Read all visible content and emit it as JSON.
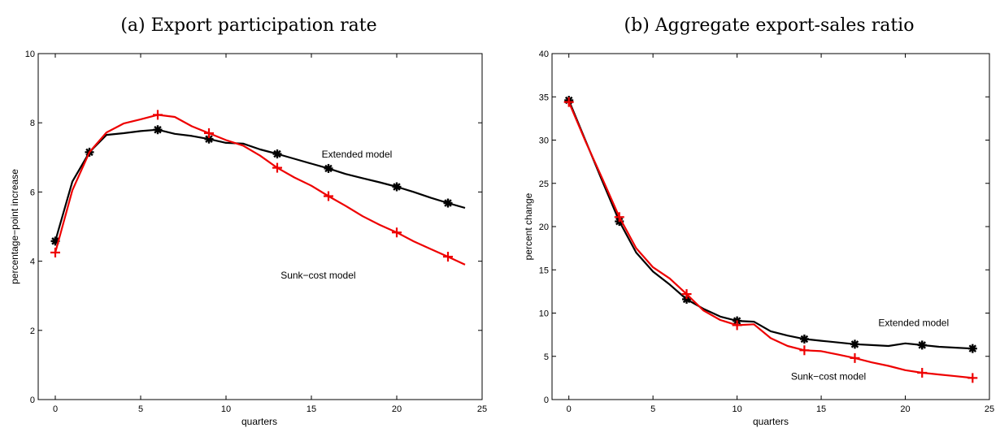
{
  "chart_data": [
    {
      "type": "line",
      "title": "(a) Export participation rate",
      "xlabel": "quarters",
      "ylabel": "percentage−point increase",
      "xlim": [
        -1,
        25
      ],
      "ylim": [
        0,
        10
      ],
      "xticks": [
        "0",
        "5",
        "10",
        "15",
        "20",
        "25"
      ],
      "yticks": [
        "0",
        "2",
        "4",
        "6",
        "8",
        "10"
      ],
      "grid": false,
      "series": [
        {
          "key": "extended",
          "color": "#000000",
          "marker": "asterisk",
          "x": [
            0,
            1,
            2,
            3,
            4,
            5,
            6,
            7,
            8,
            9,
            10,
            11,
            12,
            13,
            14,
            15,
            16,
            17,
            18,
            19,
            20,
            21,
            22,
            23,
            24
          ],
          "values": [
            4.58,
            6.3,
            7.15,
            7.65,
            7.7,
            7.76,
            7.8,
            7.68,
            7.62,
            7.53,
            7.42,
            7.4,
            7.23,
            7.1,
            6.96,
            6.82,
            6.68,
            6.52,
            6.4,
            6.28,
            6.15,
            6.0,
            5.83,
            5.68,
            5.54
          ],
          "marker_x": [
            0,
            2,
            6,
            9,
            13,
            16,
            20,
            23
          ]
        },
        {
          "key": "sunk",
          "color": "#ee0000",
          "marker": "plus",
          "x": [
            0,
            1,
            2,
            3,
            4,
            5,
            6,
            7,
            8,
            9,
            10,
            11,
            12,
            13,
            14,
            15,
            16,
            17,
            18,
            19,
            20,
            21,
            22,
            23,
            24
          ],
          "values": [
            4.25,
            6.05,
            7.15,
            7.72,
            7.98,
            8.1,
            8.23,
            8.17,
            7.9,
            7.7,
            7.5,
            7.34,
            7.05,
            6.7,
            6.42,
            6.18,
            5.88,
            5.6,
            5.3,
            5.05,
            4.83,
            4.57,
            4.35,
            4.13,
            3.9
          ],
          "marker_x": [
            0,
            6,
            9,
            13,
            16,
            20,
            23
          ]
        }
      ],
      "annotations": [
        {
          "text": "Extended model",
          "x": 15.6,
          "y": 7.0
        },
        {
          "text": "Sunk−cost model",
          "x": 13.2,
          "y": 3.5
        }
      ]
    },
    {
      "type": "line",
      "title": "(b) Aggregate export-sales ratio",
      "xlabel": "quarters",
      "ylabel": "percent change",
      "xlim": [
        -1,
        25
      ],
      "ylim": [
        0,
        40
      ],
      "xticks": [
        "0",
        "5",
        "10",
        "15",
        "20",
        "25"
      ],
      "yticks": [
        "0",
        "5",
        "10",
        "15",
        "20",
        "25",
        "30",
        "35",
        "40"
      ],
      "grid": false,
      "series": [
        {
          "key": "extended",
          "color": "#000000",
          "marker": "asterisk",
          "x": [
            0,
            1,
            2,
            3,
            4,
            5,
            6,
            7,
            8,
            9,
            10,
            11,
            12,
            13,
            14,
            15,
            16,
            17,
            18,
            19,
            20,
            21,
            22,
            23,
            24
          ],
          "values": [
            34.6,
            29.9,
            25.2,
            20.6,
            17.0,
            14.8,
            13.3,
            11.6,
            10.5,
            9.6,
            9.1,
            9.0,
            7.9,
            7.4,
            7.0,
            6.8,
            6.6,
            6.4,
            6.3,
            6.2,
            6.5,
            6.3,
            6.1,
            6.0,
            5.9
          ],
          "marker_x": [
            0,
            3,
            7,
            10,
            14,
            17,
            21,
            24
          ]
        },
        {
          "key": "sunk",
          "color": "#ee0000",
          "marker": "plus",
          "x": [
            0,
            1,
            2,
            3,
            4,
            5,
            6,
            7,
            8,
            9,
            10,
            11,
            12,
            13,
            14,
            15,
            16,
            17,
            18,
            19,
            20,
            21,
            22,
            23,
            24
          ],
          "values": [
            34.4,
            29.8,
            25.5,
            21.1,
            17.5,
            15.3,
            14.0,
            12.2,
            10.3,
            9.2,
            8.6,
            8.7,
            7.1,
            6.2,
            5.7,
            5.6,
            5.2,
            4.8,
            4.3,
            3.9,
            3.4,
            3.1,
            2.9,
            2.7,
            2.5
          ],
          "marker_x": [
            0,
            3,
            7,
            10,
            14,
            17,
            21,
            24
          ]
        }
      ],
      "annotations": [
        {
          "text": "Extended model",
          "x": 18.4,
          "y": 8.5
        },
        {
          "text": "Sunk−cost model",
          "x": 13.2,
          "y": 2.3
        }
      ]
    }
  ]
}
